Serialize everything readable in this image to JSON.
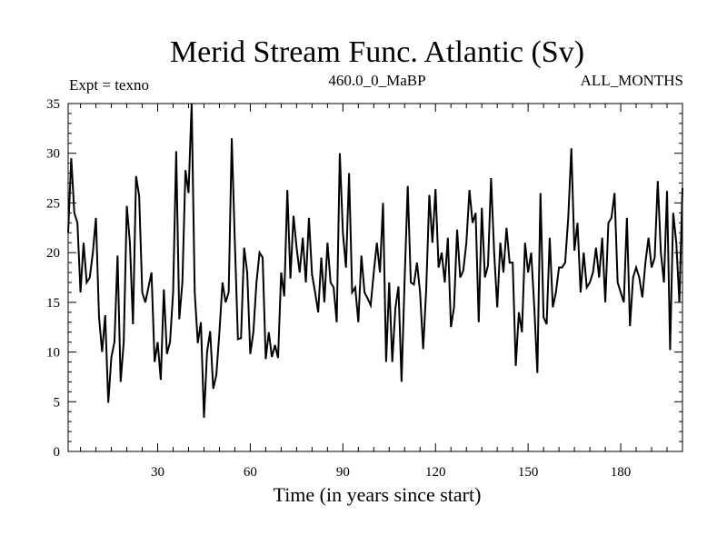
{
  "chart_data": {
    "type": "line",
    "title": "Merid Stream Func. Atlantic (Sv)",
    "subtitle_left": "Expt = texno",
    "subtitle_center": "460.0_0_MaBP",
    "subtitle_right": "ALL_MONTHS",
    "xlabel": "Time (in years since start)",
    "ylabel": "",
    "xlim": [
      1,
      200
    ],
    "ylim": [
      0,
      35
    ],
    "x_ticks": [
      30,
      60,
      90,
      120,
      150,
      180
    ],
    "y_ticks": [
      0,
      5,
      10,
      15,
      20,
      25,
      30,
      35
    ],
    "x_start": 1,
    "x_step": 1,
    "series": [
      {
        "name": "Merid Stream Func. Atlantic",
        "color": "#000000",
        "values": [
          22.0,
          29.5,
          24.0,
          23.0,
          16.0,
          21.0,
          17.0,
          17.5,
          20.0,
          23.5,
          13.5,
          10.0,
          13.7,
          4.9,
          9.5,
          11.0,
          19.7,
          7.0,
          11.0,
          24.7,
          21.0,
          12.8,
          27.7,
          25.7,
          16.0,
          15.0,
          16.5,
          18.0,
          9.0,
          11.0,
          7.2,
          16.3,
          9.8,
          11.0,
          16.0,
          30.2,
          13.3,
          17.0,
          28.3,
          26.0,
          35.0,
          16.0,
          10.9,
          13.0,
          3.4,
          10.0,
          12.1,
          6.3,
          7.7,
          12.0,
          17.0,
          15.0,
          16.0,
          31.5,
          21.0,
          11.3,
          11.4,
          20.5,
          18.0,
          9.8,
          12.0,
          17.0,
          20.0,
          19.5,
          9.3,
          12.0,
          9.5,
          10.7,
          9.4,
          18.0,
          15.6,
          26.3,
          17.4,
          23.7,
          20.5,
          18.0,
          21.5,
          17.0,
          23.5,
          17.8,
          16.0,
          14.0,
          19.5,
          15.0,
          21.0,
          17.0,
          16.5,
          13.0,
          30.0,
          22.0,
          18.5,
          28.0,
          16.0,
          16.5,
          13.0,
          19.7,
          16.0,
          15.4,
          14.7,
          18.0,
          21.0,
          18.0,
          25.0,
          9.0,
          17.0,
          9.0,
          14.4,
          16.6,
          7.0,
          17.3,
          26.7,
          17.0,
          16.8,
          19.0,
          16.0,
          10.3,
          16.4,
          25.8,
          21.0,
          26.4,
          18.5,
          20.0,
          17.0,
          21.5,
          12.5,
          14.5,
          22.3,
          17.5,
          18.2,
          21.0,
          26.3,
          23.0,
          24.0,
          13.0,
          24.5,
          17.5,
          18.7,
          27.5,
          20.0,
          14.5,
          21.0,
          18.0,
          22.5,
          19.0,
          19.0,
          8.6,
          14.0,
          12.0,
          21.0,
          18.0,
          20.0,
          14.5,
          7.9,
          26.0,
          13.5,
          12.8,
          21.5,
          14.5,
          16.0,
          18.5,
          18.5,
          19.0,
          23.5,
          30.5,
          20.2,
          23.0,
          16.0,
          20.0,
          16.5,
          17.0,
          18.0,
          20.5,
          17.5,
          21.5,
          15.0,
          23.0,
          23.5,
          26.0,
          17.0,
          16.0,
          15.0,
          23.5,
          12.6,
          17.5,
          18.5,
          17.5,
          15.5,
          19.0,
          21.5,
          18.5,
          19.5,
          27.2,
          20.0,
          17.0,
          26.2,
          10.2,
          24.0,
          21.0,
          15.0,
          26.5
        ]
      }
    ]
  }
}
